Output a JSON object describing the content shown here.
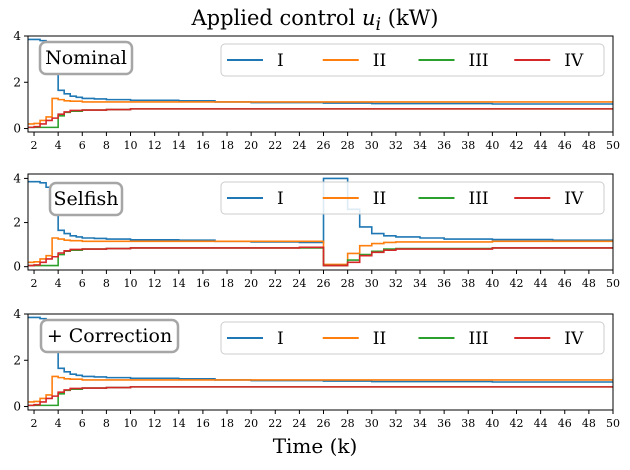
{
  "figure": {
    "title_prefix": "Applied control ",
    "title_math": "u",
    "title_sub": "i",
    "title_suffix": " (kW)",
    "xlabel": "Time (k)"
  },
  "chart_data": [
    {
      "type": "line",
      "step": true,
      "panel_label": "Nominal",
      "xlim": [
        1.5,
        50
      ],
      "ylim": [
        -0.15,
        4.0
      ],
      "yticks": [
        0,
        2,
        4
      ],
      "xticks": [
        2,
        4,
        6,
        8,
        10,
        12,
        14,
        16,
        18,
        20,
        22,
        24,
        26,
        28,
        30,
        32,
        34,
        36,
        38,
        40,
        42,
        44,
        46,
        48,
        50
      ],
      "legend_position": "top-right",
      "legend_columns": 4,
      "series": [
        {
          "name": "I",
          "color": "#1f77b4",
          "points": [
            [
              1.5,
              3.85
            ],
            [
              2,
              3.85
            ],
            [
              2.5,
              3.8
            ],
            [
              3,
              3.6
            ],
            [
              3.5,
              2.5
            ],
            [
              4,
              1.65
            ],
            [
              4.5,
              1.5
            ],
            [
              5,
              1.4
            ],
            [
              5.5,
              1.35
            ],
            [
              6,
              1.3
            ],
            [
              7,
              1.28
            ],
            [
              8,
              1.25
            ],
            [
              10,
              1.22
            ],
            [
              14,
              1.2
            ],
            [
              17,
              1.15
            ],
            [
              20,
              1.12
            ],
            [
              26,
              1.1
            ],
            [
              30,
              1.08
            ],
            [
              40,
              1.06
            ],
            [
              50,
              1.05
            ]
          ]
        },
        {
          "name": "II",
          "color": "#ff7f0e",
          "points": [
            [
              1.5,
              0.2
            ],
            [
              2,
              0.22
            ],
            [
              2.5,
              0.35
            ],
            [
              3,
              0.5
            ],
            [
              3.5,
              1.3
            ],
            [
              4,
              1.25
            ],
            [
              4.5,
              1.2
            ],
            [
              5,
              1.18
            ],
            [
              6,
              1.15
            ],
            [
              8,
              1.15
            ],
            [
              10,
              1.15
            ],
            [
              20,
              1.15
            ],
            [
              30,
              1.15
            ],
            [
              50,
              1.15
            ]
          ]
        },
        {
          "name": "III",
          "color": "#2ca02c",
          "points": [
            [
              1.5,
              0.05
            ],
            [
              2,
              0.05
            ],
            [
              2.5,
              0.05
            ],
            [
              3,
              0.05
            ],
            [
              3.5,
              0.05
            ],
            [
              4,
              0.55
            ],
            [
              4.5,
              0.7
            ],
            [
              5,
              0.75
            ],
            [
              6,
              0.8
            ],
            [
              8,
              0.82
            ],
            [
              10,
              0.85
            ],
            [
              20,
              0.85
            ],
            [
              30,
              0.85
            ],
            [
              50,
              0.85
            ]
          ]
        },
        {
          "name": "IV",
          "color": "#d62728",
          "points": [
            [
              1.5,
              0.05
            ],
            [
              2,
              0.08
            ],
            [
              2.5,
              0.2
            ],
            [
              3,
              0.35
            ],
            [
              3.5,
              0.45
            ],
            [
              4,
              0.62
            ],
            [
              4.5,
              0.72
            ],
            [
              5,
              0.78
            ],
            [
              6,
              0.8
            ],
            [
              8,
              0.82
            ],
            [
              10,
              0.85
            ],
            [
              20,
              0.85
            ],
            [
              30,
              0.85
            ],
            [
              50,
              0.85
            ]
          ]
        }
      ]
    },
    {
      "type": "line",
      "step": true,
      "panel_label": "Selfish",
      "xlim": [
        1.5,
        50
      ],
      "ylim": [
        -0.15,
        4.2
      ],
      "yticks": [
        0,
        2,
        4
      ],
      "xticks": [
        2,
        4,
        6,
        8,
        10,
        12,
        14,
        16,
        18,
        20,
        22,
        24,
        26,
        28,
        30,
        32,
        34,
        36,
        38,
        40,
        42,
        44,
        46,
        48,
        50
      ],
      "legend_position": "top-right",
      "legend_columns": 4,
      "series": [
        {
          "name": "I",
          "color": "#1f77b4",
          "points": [
            [
              1.5,
              3.85
            ],
            [
              2,
              3.85
            ],
            [
              2.5,
              3.8
            ],
            [
              3,
              3.6
            ],
            [
              3.5,
              2.5
            ],
            [
              4,
              1.65
            ],
            [
              4.5,
              1.5
            ],
            [
              5,
              1.4
            ],
            [
              5.5,
              1.35
            ],
            [
              6,
              1.3
            ],
            [
              7,
              1.28
            ],
            [
              8,
              1.25
            ],
            [
              10,
              1.22
            ],
            [
              14,
              1.2
            ],
            [
              15,
              1.2
            ],
            [
              17,
              1.15
            ],
            [
              20,
              1.12
            ],
            [
              24,
              1.1
            ],
            [
              26,
              4.0
            ],
            [
              27,
              4.0
            ],
            [
              28,
              2.6
            ],
            [
              29,
              1.8
            ],
            [
              30,
              1.5
            ],
            [
              31,
              1.4
            ],
            [
              32,
              1.35
            ],
            [
              34,
              1.3
            ],
            [
              36,
              1.25
            ],
            [
              40,
              1.23
            ],
            [
              45,
              1.2
            ],
            [
              50,
              1.2
            ]
          ]
        },
        {
          "name": "II",
          "color": "#ff7f0e",
          "points": [
            [
              1.5,
              0.2
            ],
            [
              2,
              0.22
            ],
            [
              2.5,
              0.35
            ],
            [
              3,
              0.5
            ],
            [
              3.5,
              1.3
            ],
            [
              4,
              1.25
            ],
            [
              4.5,
              1.2
            ],
            [
              5,
              1.18
            ],
            [
              6,
              1.15
            ],
            [
              10,
              1.15
            ],
            [
              20,
              1.15
            ],
            [
              24,
              1.15
            ],
            [
              26,
              0.1
            ],
            [
              28,
              0.6
            ],
            [
              29,
              0.95
            ],
            [
              30,
              1.05
            ],
            [
              31,
              1.1
            ],
            [
              32,
              1.12
            ],
            [
              40,
              1.15
            ],
            [
              50,
              1.15
            ]
          ]
        },
        {
          "name": "III",
          "color": "#2ca02c",
          "points": [
            [
              1.5,
              0.05
            ],
            [
              2,
              0.05
            ],
            [
              3,
              0.05
            ],
            [
              3.5,
              0.05
            ],
            [
              4,
              0.55
            ],
            [
              4.5,
              0.7
            ],
            [
              5,
              0.75
            ],
            [
              6,
              0.8
            ],
            [
              8,
              0.82
            ],
            [
              10,
              0.85
            ],
            [
              20,
              0.85
            ],
            [
              24,
              0.85
            ],
            [
              26,
              0.05
            ],
            [
              28,
              0.3
            ],
            [
              29,
              0.55
            ],
            [
              30,
              0.7
            ],
            [
              31,
              0.8
            ],
            [
              32,
              0.82
            ],
            [
              40,
              0.85
            ],
            [
              50,
              0.85
            ]
          ]
        },
        {
          "name": "IV",
          "color": "#d62728",
          "points": [
            [
              1.5,
              0.05
            ],
            [
              2,
              0.08
            ],
            [
              2.5,
              0.2
            ],
            [
              3,
              0.35
            ],
            [
              3.5,
              0.45
            ],
            [
              4,
              0.62
            ],
            [
              4.5,
              0.72
            ],
            [
              5,
              0.78
            ],
            [
              6,
              0.8
            ],
            [
              8,
              0.82
            ],
            [
              10,
              0.85
            ],
            [
              20,
              0.85
            ],
            [
              24,
              0.88
            ],
            [
              26,
              0.05
            ],
            [
              28,
              0.2
            ],
            [
              29,
              0.5
            ],
            [
              30,
              0.65
            ],
            [
              31,
              0.75
            ],
            [
              32,
              0.8
            ],
            [
              40,
              0.85
            ],
            [
              50,
              0.85
            ]
          ]
        }
      ]
    },
    {
      "type": "line",
      "step": true,
      "panel_label": "+ Correction",
      "xlim": [
        1.5,
        50
      ],
      "ylim": [
        -0.15,
        4.0
      ],
      "yticks": [
        0,
        2,
        4
      ],
      "xticks": [
        2,
        4,
        6,
        8,
        10,
        12,
        14,
        16,
        18,
        20,
        22,
        24,
        26,
        28,
        30,
        32,
        34,
        36,
        38,
        40,
        42,
        44,
        46,
        48,
        50
      ],
      "legend_position": "top-right",
      "legend_columns": 4,
      "series": [
        {
          "name": "I",
          "color": "#1f77b4",
          "points": [
            [
              1.5,
              3.85
            ],
            [
              2,
              3.85
            ],
            [
              2.5,
              3.8
            ],
            [
              3,
              3.6
            ],
            [
              3.5,
              2.5
            ],
            [
              4,
              1.65
            ],
            [
              4.5,
              1.5
            ],
            [
              5,
              1.4
            ],
            [
              5.5,
              1.35
            ],
            [
              6,
              1.3
            ],
            [
              7,
              1.28
            ],
            [
              8,
              1.25
            ],
            [
              10,
              1.22
            ],
            [
              14,
              1.2
            ],
            [
              17,
              1.15
            ],
            [
              20,
              1.12
            ],
            [
              26,
              1.1
            ],
            [
              30,
              1.08
            ],
            [
              40,
              1.06
            ],
            [
              50,
              1.05
            ]
          ]
        },
        {
          "name": "II",
          "color": "#ff7f0e",
          "points": [
            [
              1.5,
              0.2
            ],
            [
              2,
              0.22
            ],
            [
              2.5,
              0.35
            ],
            [
              3,
              0.5
            ],
            [
              3.5,
              1.3
            ],
            [
              4,
              1.25
            ],
            [
              4.5,
              1.2
            ],
            [
              5,
              1.18
            ],
            [
              6,
              1.15
            ],
            [
              10,
              1.15
            ],
            [
              20,
              1.15
            ],
            [
              30,
              1.15
            ],
            [
              50,
              1.15
            ]
          ]
        },
        {
          "name": "III",
          "color": "#2ca02c",
          "points": [
            [
              1.5,
              0.05
            ],
            [
              2,
              0.05
            ],
            [
              3,
              0.05
            ],
            [
              3.5,
              0.05
            ],
            [
              4,
              0.55
            ],
            [
              4.5,
              0.7
            ],
            [
              5,
              0.75
            ],
            [
              6,
              0.8
            ],
            [
              8,
              0.82
            ],
            [
              10,
              0.85
            ],
            [
              20,
              0.85
            ],
            [
              30,
              0.85
            ],
            [
              50,
              0.85
            ]
          ]
        },
        {
          "name": "IV",
          "color": "#d62728",
          "points": [
            [
              1.5,
              0.05
            ],
            [
              2,
              0.08
            ],
            [
              2.5,
              0.2
            ],
            [
              3,
              0.35
            ],
            [
              3.5,
              0.45
            ],
            [
              4,
              0.62
            ],
            [
              4.5,
              0.72
            ],
            [
              5,
              0.78
            ],
            [
              6,
              0.8
            ],
            [
              8,
              0.82
            ],
            [
              10,
              0.85
            ],
            [
              20,
              0.85
            ],
            [
              30,
              0.85
            ],
            [
              50,
              0.85
            ]
          ]
        }
      ]
    }
  ]
}
